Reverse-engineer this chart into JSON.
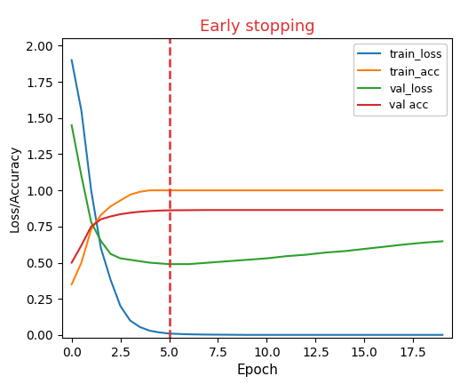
{
  "title": "Early stopping",
  "title_color": "#e03030",
  "xlabel": "Epoch",
  "ylabel": "Loss/Accuracy",
  "xlim": [
    -0.5,
    19.5
  ],
  "ylim": [
    -0.02,
    2.05
  ],
  "early_stopping_epoch": 5,
  "train_loss": {
    "x": [
      0,
      0.5,
      1,
      1.5,
      2,
      2.5,
      3,
      3.5,
      4,
      4.5,
      5,
      6,
      7,
      8,
      9,
      10,
      11,
      12,
      13,
      14,
      15,
      16,
      17,
      18,
      19
    ],
    "y": [
      1.9,
      1.55,
      1.0,
      0.6,
      0.38,
      0.2,
      0.1,
      0.055,
      0.03,
      0.018,
      0.01,
      0.005,
      0.003,
      0.002,
      0.001,
      0.001,
      0.001,
      0.001,
      0.001,
      0.001,
      0.001,
      0.001,
      0.001,
      0.001,
      0.001
    ],
    "color": "#1f77b4",
    "label": "train_loss"
  },
  "train_acc": {
    "x": [
      0,
      0.5,
      1,
      1.5,
      2,
      2.5,
      3,
      3.5,
      4,
      4.5,
      5,
      6,
      7,
      8,
      9,
      10,
      11,
      12,
      13,
      14,
      15,
      16,
      17,
      18,
      19
    ],
    "y": [
      0.35,
      0.5,
      0.73,
      0.83,
      0.89,
      0.93,
      0.97,
      0.99,
      1.0,
      1.0,
      1.0,
      1.0,
      1.0,
      1.0,
      1.0,
      1.0,
      1.0,
      1.0,
      1.0,
      1.0,
      1.0,
      1.0,
      1.0,
      1.0,
      1.0
    ],
    "color": "#ff7f0e",
    "label": "train_acc"
  },
  "val_loss": {
    "x": [
      0,
      0.5,
      1,
      1.5,
      2,
      2.5,
      3,
      3.5,
      4,
      4.5,
      5,
      6,
      7,
      8,
      9,
      10,
      11,
      12,
      13,
      14,
      15,
      16,
      17,
      18,
      19
    ],
    "y": [
      1.45,
      1.1,
      0.78,
      0.65,
      0.56,
      0.53,
      0.52,
      0.51,
      0.5,
      0.495,
      0.49,
      0.49,
      0.5,
      0.51,
      0.52,
      0.53,
      0.545,
      0.555,
      0.57,
      0.58,
      0.595,
      0.61,
      0.625,
      0.638,
      0.648
    ],
    "color": "#2ca02c",
    "label": "val_loss"
  },
  "val_acc": {
    "x": [
      0,
      0.5,
      1,
      1.5,
      2,
      2.5,
      3,
      3.5,
      4,
      4.5,
      5,
      6,
      7,
      8,
      9,
      10,
      11,
      12,
      13,
      14,
      15,
      16,
      17,
      18,
      19
    ],
    "y": [
      0.5,
      0.62,
      0.75,
      0.8,
      0.82,
      0.835,
      0.845,
      0.852,
      0.857,
      0.86,
      0.862,
      0.863,
      0.864,
      0.864,
      0.864,
      0.864,
      0.864,
      0.864,
      0.864,
      0.864,
      0.864,
      0.864,
      0.864,
      0.864,
      0.864
    ],
    "color": "#d62728",
    "label": "val acc"
  },
  "xticks": [
    0.0,
    2.5,
    5.0,
    7.5,
    10.0,
    12.5,
    15.0,
    17.5
  ],
  "xtick_labels": [
    "0.0",
    "2.5",
    "5.0",
    "7.5",
    "10.0",
    "12.5",
    "15.0",
    "17.5"
  ],
  "yticks": [
    0.0,
    0.25,
    0.5,
    0.75,
    1.0,
    1.25,
    1.5,
    1.75,
    2.0
  ],
  "ytick_labels": [
    "0.00",
    "0.25",
    "0.50",
    "0.75",
    "1.00",
    "1.25",
    "1.50",
    "1.75",
    "2.00"
  ],
  "linewidth": 1.5,
  "vline_color": "#e03030",
  "figsize": [
    5.36,
    4.32
  ],
  "dpi": 100
}
